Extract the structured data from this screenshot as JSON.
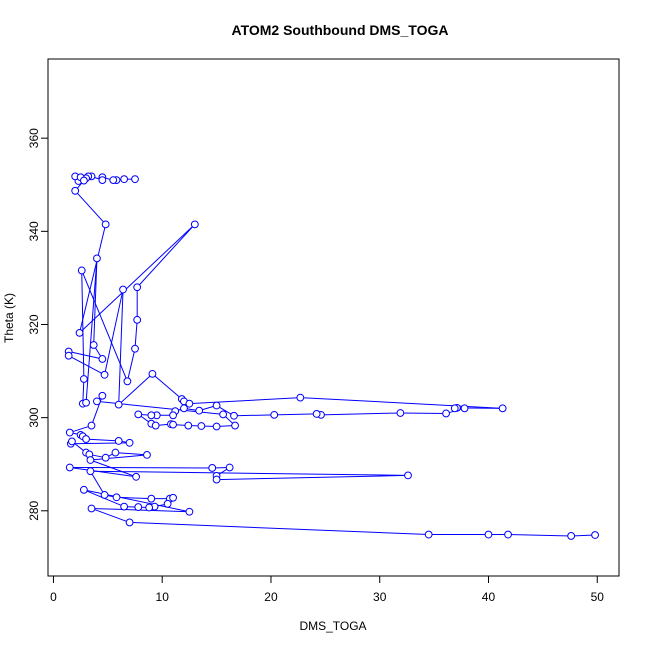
{
  "chart_data": {
    "type": "line",
    "title": "ATOM2 Southbound DMS_TOGA",
    "xlabel": "DMS_TOGA",
    "ylabel": "Theta (K)",
    "xlim": [
      -0.5,
      52
    ],
    "ylim": [
      266,
      377
    ],
    "xticks": [
      0,
      10,
      20,
      30,
      40,
      50
    ],
    "yticks": [
      280,
      300,
      320,
      340,
      360
    ],
    "grid": false,
    "legend": "none",
    "colors": {
      "series": "#0000ff",
      "axis": "#000000"
    },
    "markers": "open-circle",
    "series": [
      {
        "points": [
          [
            7.5,
            351.2
          ],
          [
            6.5,
            351.2
          ],
          [
            5.8,
            351.0
          ],
          [
            5.5,
            351.0
          ],
          [
            4.5,
            351.6
          ],
          [
            4.5,
            351.0
          ],
          [
            3.5,
            351.8
          ],
          [
            3.2,
            351.8
          ],
          [
            3.0,
            351.4
          ],
          [
            2.7,
            351.0
          ],
          [
            2.5,
            351.5
          ],
          [
            2.3,
            350.8
          ],
          [
            2.0,
            351.8
          ],
          [
            2.5,
            351.6
          ],
          [
            2.8,
            350.9
          ],
          [
            2.0,
            348.7
          ],
          [
            4.8,
            341.5
          ],
          [
            2.4,
            318.2
          ],
          [
            13.0,
            341.5
          ],
          [
            7.7,
            328.0
          ],
          [
            7.7,
            321.0
          ],
          [
            7.5,
            314.8
          ],
          [
            6.8,
            307.8
          ],
          [
            2.6,
            331.6
          ],
          [
            2.8,
            308.3
          ],
          [
            2.7,
            303.0
          ],
          [
            3.0,
            303.2
          ],
          [
            4.0,
            334.2
          ],
          [
            3.7,
            315.6
          ],
          [
            4.5,
            312.6
          ],
          [
            1.4,
            314.2
          ],
          [
            1.4,
            313.3
          ],
          [
            4.7,
            309.2
          ],
          [
            6.4,
            327.5
          ],
          [
            6.0,
            302.8
          ],
          [
            9.1,
            309.4
          ],
          [
            11.8,
            304.0
          ],
          [
            12.0,
            303.5
          ],
          [
            12.5,
            303.0
          ],
          [
            22.7,
            304.3
          ],
          [
            41.3,
            302.0
          ],
          [
            37.1,
            302.1
          ],
          [
            36.9,
            302.0
          ],
          [
            37.8,
            302.0
          ],
          [
            36.1,
            300.9
          ],
          [
            31.9,
            301.0
          ],
          [
            24.6,
            300.6
          ],
          [
            24.2,
            300.8
          ],
          [
            20.3,
            300.6
          ],
          [
            16.6,
            300.4
          ],
          [
            15.0,
            302.6
          ],
          [
            13.4,
            301.5
          ],
          [
            12.0,
            302.0
          ],
          [
            11.2,
            301.4
          ],
          [
            11.0,
            300.5
          ],
          [
            9.5,
            300.5
          ],
          [
            9.0,
            300.5
          ],
          [
            7.8,
            300.7
          ],
          [
            9.0,
            298.7
          ],
          [
            9.4,
            298.3
          ],
          [
            10.8,
            298.6
          ],
          [
            11.0,
            298.5
          ],
          [
            12.4,
            298.3
          ],
          [
            13.6,
            298.2
          ],
          [
            15.0,
            298.1
          ],
          [
            16.7,
            298.3
          ],
          [
            15.6,
            300.7
          ],
          [
            4.0,
            303.5
          ],
          [
            4.5,
            304.7
          ],
          [
            3.5,
            298.3
          ],
          [
            1.5,
            296.8
          ],
          [
            2.5,
            296.3
          ],
          [
            2.7,
            296.0
          ],
          [
            3.0,
            295.4
          ],
          [
            6.0,
            295.0
          ],
          [
            7.0,
            294.6
          ],
          [
            1.6,
            294.4
          ],
          [
            1.7,
            294.9
          ],
          [
            3.0,
            292.5
          ],
          [
            3.3,
            292.1
          ],
          [
            4.8,
            291.4
          ],
          [
            5.7,
            292.5
          ],
          [
            8.6,
            292.0
          ],
          [
            3.4,
            290.9
          ],
          [
            7.6,
            287.3
          ],
          [
            1.5,
            289.3
          ],
          [
            14.6,
            289.2
          ],
          [
            16.2,
            289.3
          ],
          [
            15.0,
            287.5
          ],
          [
            15.0,
            286.7
          ],
          [
            32.6,
            287.6
          ],
          [
            3.4,
            288.5
          ],
          [
            4.7,
            283.4
          ],
          [
            5.8,
            282.9
          ],
          [
            9.0,
            282.6
          ],
          [
            10.7,
            282.6
          ],
          [
            11.0,
            282.8
          ],
          [
            10.5,
            281.5
          ],
          [
            9.3,
            280.9
          ],
          [
            8.8,
            280.7
          ],
          [
            7.8,
            280.8
          ],
          [
            6.5,
            280.9
          ],
          [
            2.8,
            284.5
          ],
          [
            12.5,
            279.8
          ],
          [
            3.5,
            280.5
          ],
          [
            7.0,
            277.5
          ],
          [
            34.5,
            274.9
          ],
          [
            40.0,
            274.9
          ],
          [
            41.8,
            274.9
          ],
          [
            47.6,
            274.6
          ],
          [
            49.8,
            274.8
          ]
        ]
      }
    ]
  }
}
